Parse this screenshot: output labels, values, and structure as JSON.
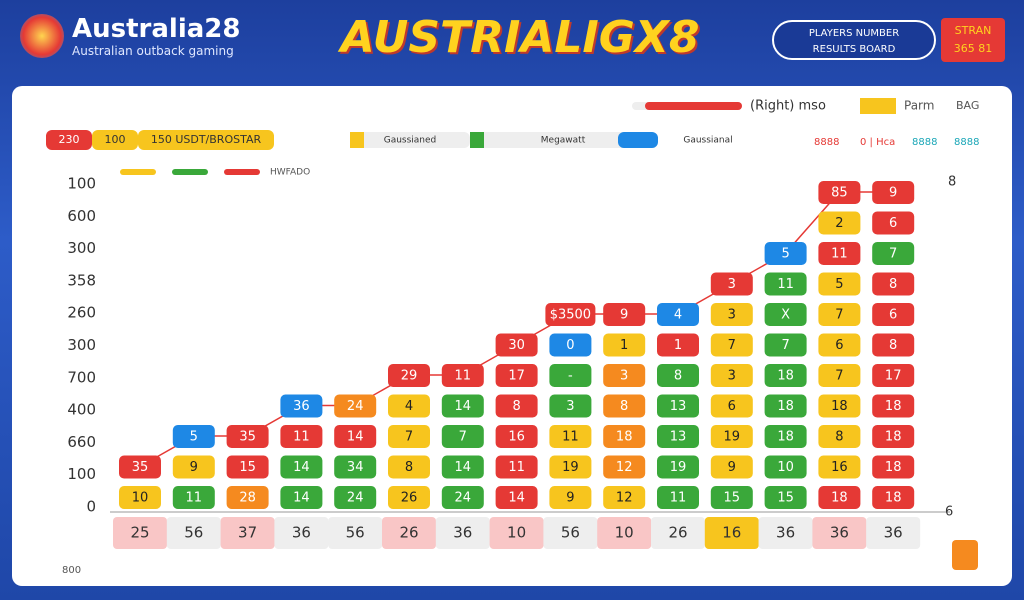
{
  "header": {
    "logo": "Australia28",
    "logo_subtitle": "Australian outback gaming",
    "title": "AUSTRIALIGX8",
    "badge_line1": "PLAYERS NUMBER",
    "badge_line2": "RESULTS BOARD",
    "button_line1": "STRAN",
    "button_line2": "365 81"
  },
  "toolbar": {
    "chips": [
      "230",
      "100",
      "150 USDT/BROSTAR"
    ],
    "tabs": [
      "Gaussianed",
      "Megawatt",
      "Gaussianal"
    ],
    "right_label": "(Right) mso",
    "right_chips": [
      "Parm",
      "BAG"
    ],
    "tags": [
      "8888",
      "0 | Hca",
      "8888",
      "8888"
    ],
    "legend_label": "HWFADO"
  },
  "board": {
    "y_labels": [
      "100",
      "600",
      "300",
      "358",
      "260",
      "300",
      "700",
      "400",
      "660",
      "100",
      "0"
    ],
    "right_top": "8",
    "right_bottom": "6",
    "columns": [
      {
        "label": "25",
        "label_color": "p",
        "tiles": [
          "10",
          "35"
        ],
        "colors": [
          "y",
          "r"
        ]
      },
      {
        "label": "56",
        "label_color": "g",
        "tiles": [
          "11",
          "9",
          "5"
        ],
        "colors": [
          "g",
          "y",
          "b"
        ]
      },
      {
        "label": "37",
        "label_color": "p",
        "tiles": [
          "28",
          "15",
          "35"
        ],
        "colors": [
          "o",
          "r",
          "r"
        ]
      },
      {
        "label": "36",
        "label_color": "g",
        "tiles": [
          "14",
          "14",
          "11",
          "36"
        ],
        "colors": [
          "g",
          "g",
          "r",
          "b"
        ]
      },
      {
        "label": "56",
        "label_color": "g",
        "tiles": [
          "24",
          "34",
          "14",
          "24"
        ],
        "colors": [
          "g",
          "g",
          "r",
          "o"
        ]
      },
      {
        "label": "26",
        "label_color": "p",
        "tiles": [
          "26",
          "8",
          "7",
          "4",
          "29"
        ],
        "colors": [
          "y",
          "y",
          "y",
          "y",
          "r"
        ]
      },
      {
        "label": "36",
        "label_color": "g",
        "tiles": [
          "24",
          "14",
          "7",
          "14",
          "11"
        ],
        "colors": [
          "g",
          "g",
          "g",
          "g",
          "r"
        ]
      },
      {
        "label": "10",
        "label_color": "p",
        "tiles": [
          "14",
          "11",
          "16",
          "8",
          "17",
          "30"
        ],
        "colors": [
          "r",
          "r",
          "r",
          "r",
          "r",
          "r"
        ]
      },
      {
        "label": "56",
        "label_color": "g",
        "tiles": [
          "9",
          "19",
          "11",
          "3",
          "-",
          "0",
          "$3500"
        ],
        "colors": [
          "y",
          "y",
          "y",
          "g",
          "g",
          "b",
          "r"
        ]
      },
      {
        "label": "10",
        "label_color": "p",
        "tiles": [
          "12",
          "12",
          "18",
          "8",
          "3",
          "1",
          "9"
        ],
        "colors": [
          "y",
          "o",
          "o",
          "o",
          "o",
          "y",
          "r"
        ]
      },
      {
        "label": "26",
        "label_color": "g",
        "tiles": [
          "11",
          "19",
          "13",
          "13",
          "8",
          "1",
          "4"
        ],
        "colors": [
          "g",
          "g",
          "g",
          "g",
          "g",
          "r",
          "b"
        ]
      },
      {
        "label": "16",
        "label_color": "y",
        "tiles": [
          "15",
          "9",
          "19",
          "6",
          "3",
          "7",
          "3",
          "3"
        ],
        "colors": [
          "g",
          "y",
          "y",
          "y",
          "y",
          "y",
          "y",
          "r"
        ]
      },
      {
        "label": "36",
        "label_color": "g",
        "tiles": [
          "15",
          "10",
          "18",
          "18",
          "18",
          "7",
          "X",
          "11",
          "5"
        ],
        "colors": [
          "g",
          "g",
          "g",
          "g",
          "g",
          "g",
          "g",
          "g",
          "b"
        ]
      },
      {
        "label": "36",
        "label_color": "p",
        "tiles": [
          "18",
          "16",
          "8",
          "18",
          "7",
          "6",
          "7",
          "5",
          "11",
          "2",
          "85"
        ],
        "colors": [
          "r",
          "y",
          "y",
          "y",
          "y",
          "y",
          "y",
          "y",
          "r",
          "y",
          "r"
        ]
      },
      {
        "label": "36",
        "label_color": "g",
        "tiles": [
          "18",
          "18",
          "18",
          "18",
          "17",
          "8",
          "6",
          "8",
          "7",
          "6",
          "9"
        ],
        "colors": [
          "r",
          "r",
          "r",
          "r",
          "r",
          "r",
          "r",
          "r",
          "g",
          "r",
          "r"
        ]
      }
    ]
  },
  "footer": {
    "note": "800"
  }
}
